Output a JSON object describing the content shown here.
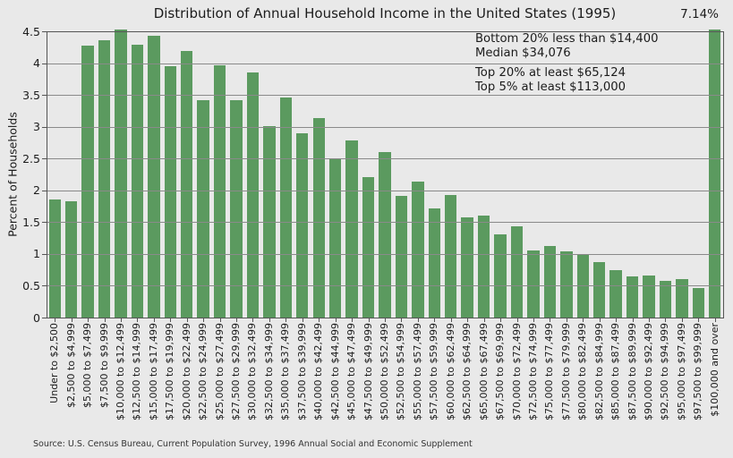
{
  "annotations": {
    "top_bar_value": "7.14%",
    "group1": [
      "Bottom 20% less than $14,400",
      "Median $34,076"
    ],
    "group2": [
      "Top 20% at least $65,124",
      "Top 5% at least $113,000"
    ]
  },
  "source": "Source: U.S. Census Bureau, Current Population Survey, 1996 Annual Social and Economic Supplement",
  "chart_data": {
    "type": "bar",
    "title": "Distribution of Annual Household Income in the United States (1995)",
    "xlabel": "",
    "ylabel": "Percent of Households",
    "ylim": [
      0,
      4.5
    ],
    "ytick_labels": [
      "0",
      "0.5",
      "1",
      "1.5",
      "2",
      "2.5",
      "3",
      "3.5",
      "4",
      "4.5"
    ],
    "grid": true,
    "legend": "none",
    "bar_color": "#5b9a5f",
    "background_color": "#e9e9e9",
    "categories": [
      "Under to $2,500",
      "$2,500 to $4,999",
      "$5,000 to $7,499",
      "$7,500 to $9,999",
      "$10,000 to $12,499",
      "$12,500 to $14,999",
      "$15,000 to $17,499",
      "$17,500 to $19,999",
      "$20,000 to $22,499",
      "$22,500 to $24,999",
      "$25,000 to $27,499",
      "$27,500 to $29,999",
      "$30,000 to $32,499",
      "$32,500 to $34,999",
      "$35,000 to $37,499",
      "$37,500 to $39,999",
      "$40,000 to $42,499",
      "$42,500 to $44,999",
      "$45,000 to $47,499",
      "$47,500 to $49,999",
      "$50,000 to $52,499",
      "$52,500 to $54,999",
      "$55,000 to $57,499",
      "$57,500 to $59,999",
      "$60,000 to $62,499",
      "$62,500 to $64,999",
      "$65,000 to $67,499",
      "$67,500 to $69,999",
      "$70,000 to $72,499",
      "$72,500 to $74,999",
      "$75,000 to $77,499",
      "$77,500 to $79,999",
      "$80,000 to $82,499",
      "$82,500 to $84,999",
      "$85,000 to $87,499",
      "$87,500 to $89,999",
      "$90,000 to $92,499",
      "$92,500 to $94,999",
      "$95,000 to $97,499",
      "$97,500 to $99,999",
      "$100,000 and over"
    ],
    "values": [
      1.85,
      1.83,
      4.27,
      4.36,
      4.55,
      4.29,
      4.43,
      3.95,
      4.19,
      3.42,
      3.97,
      3.42,
      3.85,
      3.01,
      3.46,
      2.9,
      3.14,
      2.5,
      2.79,
      2.21,
      2.6,
      1.91,
      2.14,
      1.72,
      1.92,
      1.58,
      1.6,
      1.31,
      1.43,
      1.05,
      1.13,
      1.04,
      1.0,
      0.87,
      0.75,
      0.64,
      0.66,
      0.57,
      0.61,
      0.46,
      7.14
    ]
  }
}
